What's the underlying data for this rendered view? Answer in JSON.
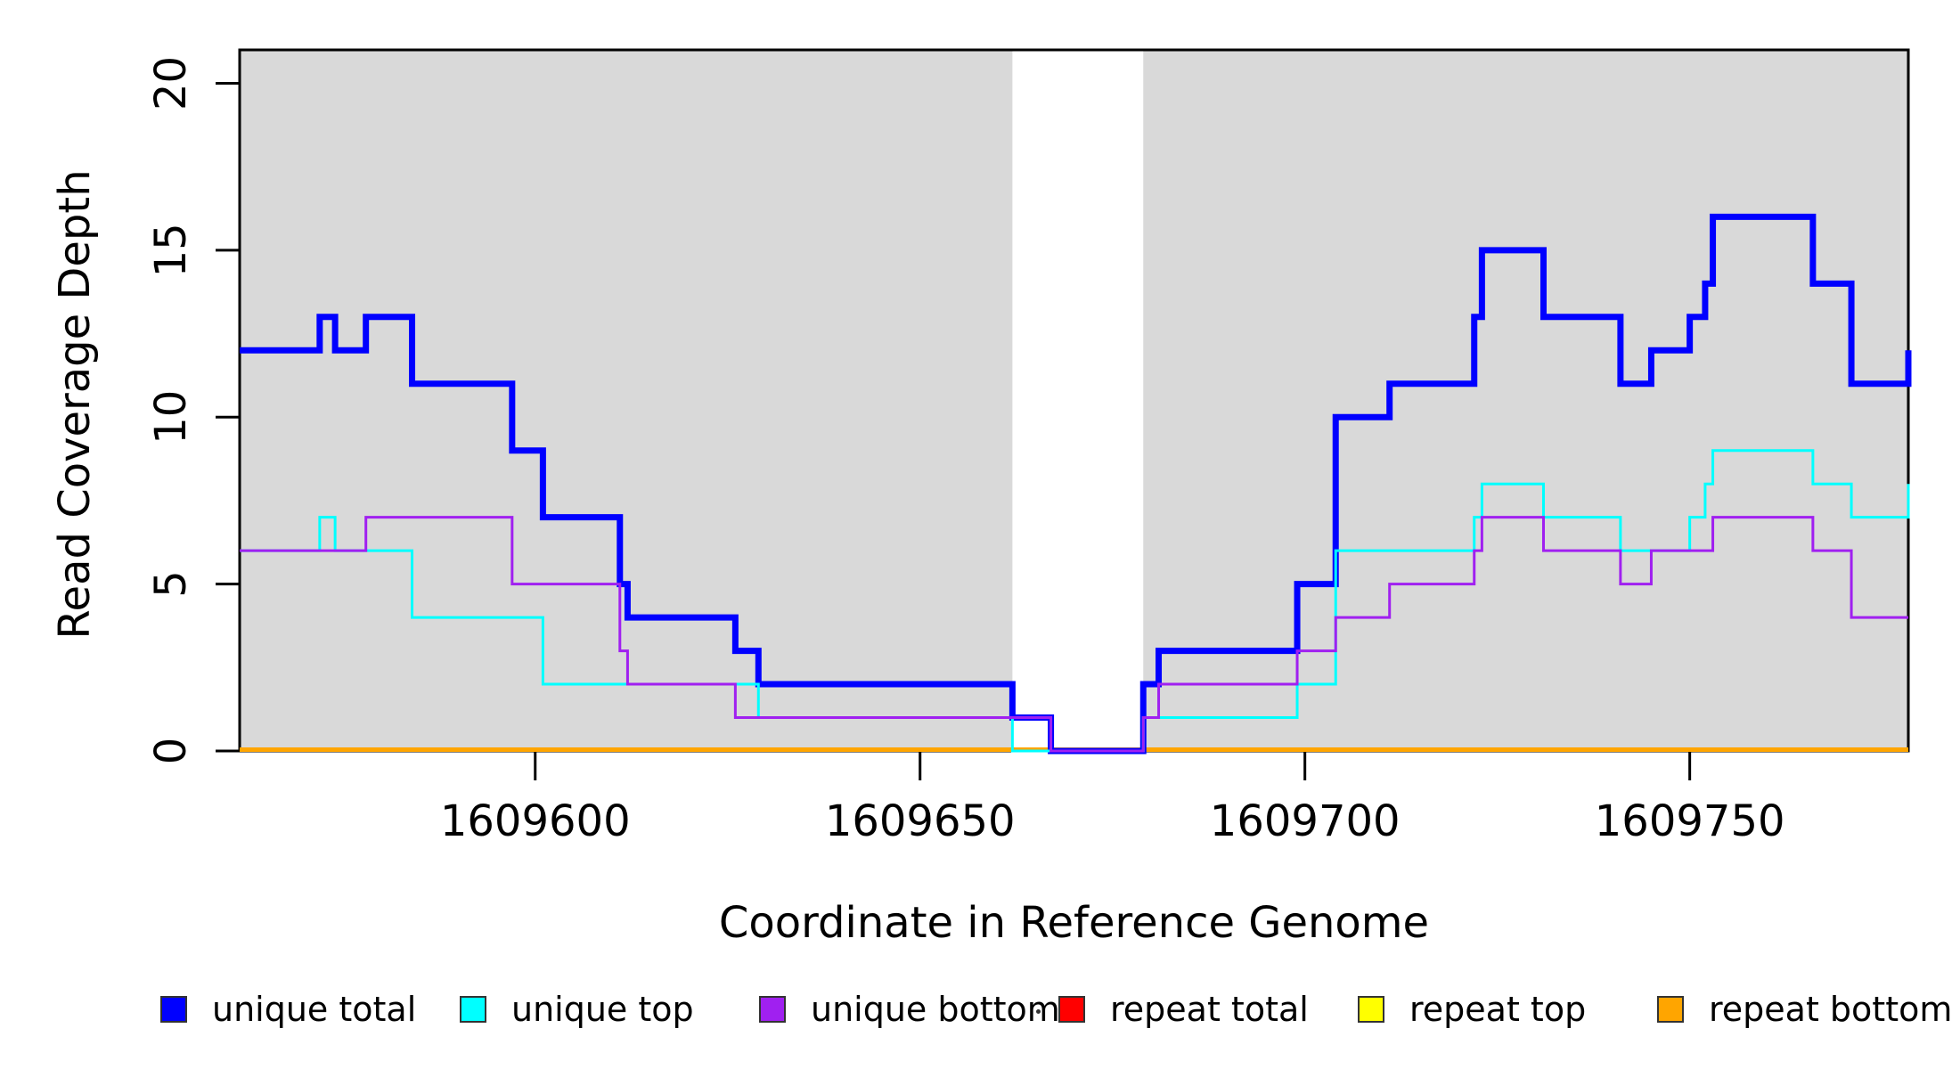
{
  "axis_titles": {
    "x": "Coordinate in Reference Genome",
    "y": "Read Coverage Depth"
  },
  "chart_data": {
    "type": "step-line",
    "title": "",
    "xlabel": "Coordinate in Reference Genome",
    "ylabel": "Read Coverage Depth",
    "xlim": [
      1609561.6,
      1609778.4
    ],
    "ylim": [
      0,
      21
    ],
    "x_ticks": [
      1609600,
      1609650,
      1609700,
      1609750
    ],
    "x_tick_labels": [
      "1609600",
      "1609650",
      "1609700",
      "1609750"
    ],
    "y_ticks": [
      0,
      5,
      10,
      15,
      20
    ],
    "y_tick_labels": [
      "0",
      "5",
      "10",
      "15",
      "20"
    ],
    "grid": false,
    "legend_position": "bottom",
    "background_shading": {
      "color": "#D9D9D9",
      "regions": [
        [
          1609561.6,
          1609662
        ],
        [
          1609679,
          1609778.4
        ]
      ]
    },
    "unshaded_gap": [
      1609662,
      1609679
    ],
    "series": [
      {
        "name": "unique total",
        "color": "#0000FF",
        "width": 7,
        "points": [
          [
            1609561.6,
            12
          ],
          [
            1609572,
            13
          ],
          [
            1609574,
            12
          ],
          [
            1609578,
            13
          ],
          [
            1609584,
            11
          ],
          [
            1609597,
            9
          ],
          [
            1609601,
            7
          ],
          [
            1609611,
            5
          ],
          [
            1609612,
            4
          ],
          [
            1609626,
            3
          ],
          [
            1609629,
            2
          ],
          [
            1609662,
            1
          ],
          [
            1609667,
            0
          ],
          [
            1609679,
            2
          ],
          [
            1609681,
            3
          ],
          [
            1609699,
            5
          ],
          [
            1609704,
            10
          ],
          [
            1609711,
            11
          ],
          [
            1609722,
            13
          ],
          [
            1609723,
            15
          ],
          [
            1609731,
            13
          ],
          [
            1609741,
            11
          ],
          [
            1609745,
            12
          ],
          [
            1609750,
            13
          ],
          [
            1609752,
            14
          ],
          [
            1609753,
            16
          ],
          [
            1609766,
            14
          ],
          [
            1609771,
            11
          ],
          [
            1609779,
            12
          ]
        ]
      },
      {
        "name": "unique top",
        "color": "#00FFFF",
        "width": 3,
        "points": [
          [
            1609561.6,
            6
          ],
          [
            1609572,
            7
          ],
          [
            1609574,
            6
          ],
          [
            1609584,
            4
          ],
          [
            1609601,
            2
          ],
          [
            1609629,
            1
          ],
          [
            1609662,
            0
          ],
          [
            1609679,
            1
          ],
          [
            1609699,
            2
          ],
          [
            1609704,
            6
          ],
          [
            1609722,
            7
          ],
          [
            1609723,
            8
          ],
          [
            1609731,
            7
          ],
          [
            1609741,
            6
          ],
          [
            1609750,
            7
          ],
          [
            1609752,
            8
          ],
          [
            1609753,
            9
          ],
          [
            1609766,
            8
          ],
          [
            1609771,
            7
          ],
          [
            1609779,
            8
          ]
        ]
      },
      {
        "name": "unique bottom",
        "color": "#A020F0",
        "width": 3,
        "points": [
          [
            1609561.6,
            6
          ],
          [
            1609578,
            7
          ],
          [
            1609597,
            5
          ],
          [
            1609611,
            3
          ],
          [
            1609612,
            2
          ],
          [
            1609626,
            1
          ],
          [
            1609667,
            0
          ],
          [
            1609679,
            1
          ],
          [
            1609681,
            2
          ],
          [
            1609699,
            3
          ],
          [
            1609704,
            4
          ],
          [
            1609711,
            5
          ],
          [
            1609722,
            6
          ],
          [
            1609723,
            7
          ],
          [
            1609731,
            6
          ],
          [
            1609741,
            5
          ],
          [
            1609745,
            6
          ],
          [
            1609753,
            7
          ],
          [
            1609766,
            6
          ],
          [
            1609771,
            4
          ]
        ]
      },
      {
        "name": "repeat total",
        "color": "#FF0000",
        "width": 3,
        "points": [
          [
            1609561.6,
            0
          ]
        ]
      },
      {
        "name": "repeat top",
        "color": "#FFFF00",
        "width": 3,
        "points": [
          [
            1609561.6,
            0
          ]
        ]
      },
      {
        "name": "repeat bottom",
        "color": "#FFA500",
        "width": 5,
        "points": [
          [
            1609561.6,
            0
          ]
        ]
      }
    ],
    "draw_order": [
      "repeat total",
      "repeat top",
      "repeat bottom",
      "unique total",
      "unique top",
      "unique bottom"
    ]
  },
  "legend": {
    "items": [
      {
        "label": "unique total",
        "color": "#0000FF"
      },
      {
        "label": "unique top",
        "color": "#00FFFF"
      },
      {
        "label": "unique bottom",
        "color": "#A020F0"
      },
      {
        "label": "repeat total",
        "color": "#FF0000"
      },
      {
        "label": "repeat top",
        "color": "#FFFF00"
      },
      {
        "label": "repeat bottom",
        "color": "#FFA500"
      }
    ]
  }
}
